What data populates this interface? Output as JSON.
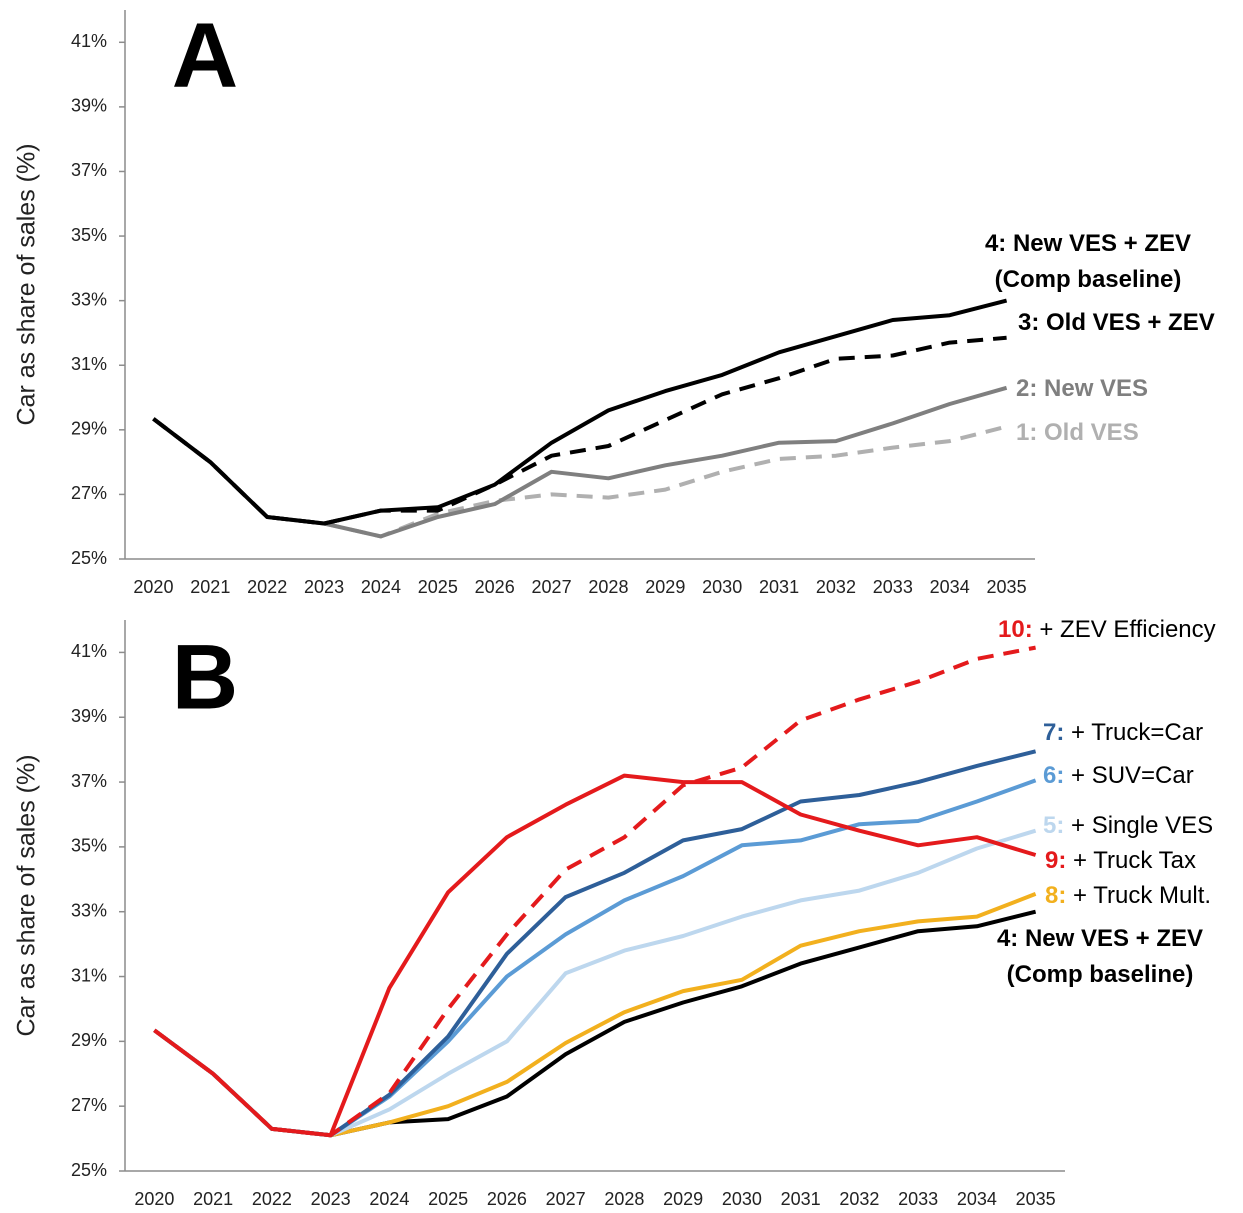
{
  "chart_data": [
    {
      "type": "line",
      "title": "A",
      "y_label": "Car as share of sales (%)",
      "x": [
        2020,
        2021,
        2022,
        2023,
        2024,
        2025,
        2026,
        2027,
        2028,
        2029,
        2030,
        2031,
        2032,
        2033,
        2034,
        2035
      ],
      "xlim": [
        2019.5,
        2035.5
      ],
      "ylim": [
        25,
        42
      ],
      "yticks": [
        {
          "value": 25,
          "label": "25%"
        },
        {
          "value": 27,
          "label": "27%"
        },
        {
          "value": 29,
          "label": "29%"
        },
        {
          "value": 31,
          "label": "31%"
        },
        {
          "value": 33,
          "label": "33%"
        },
        {
          "value": 35,
          "label": "35%"
        },
        {
          "value": 37,
          "label": "37%"
        },
        {
          "value": 39,
          "label": "39%"
        },
        {
          "value": 41,
          "label": "41%"
        }
      ],
      "series": [
        {
          "name": "1: Old VES",
          "color": "#b0b0b0",
          "dashed": true,
          "values": [
            29.34,
            28.0,
            26.3,
            26.1,
            25.7,
            26.4,
            26.8,
            27.0,
            26.9,
            27.15,
            27.7,
            28.1,
            28.2,
            28.45,
            28.65,
            29.1
          ]
        },
        {
          "name": "2: New VES",
          "color": "#7f7f7f",
          "dashed": false,
          "values": [
            29.34,
            28.0,
            26.3,
            26.1,
            25.7,
            26.3,
            26.7,
            27.7,
            27.5,
            27.9,
            28.2,
            28.6,
            28.65,
            29.2,
            29.8,
            30.3
          ]
        },
        {
          "name": "3: Old VES + ZEV",
          "color": "#000000",
          "dashed": true,
          "values": [
            29.34,
            28.0,
            26.3,
            26.1,
            26.5,
            26.5,
            27.3,
            28.2,
            28.5,
            29.3,
            30.1,
            30.6,
            31.2,
            31.3,
            31.7,
            31.85
          ]
        },
        {
          "name": "4: New VES + ZEV (Comp baseline)",
          "color": "#000000",
          "dashed": false,
          "values": [
            29.34,
            28.0,
            26.3,
            26.1,
            26.5,
            26.6,
            27.3,
            28.6,
            29.6,
            30.2,
            30.7,
            31.4,
            31.9,
            32.4,
            32.55,
            33.0
          ]
        }
      ]
    },
    {
      "type": "line",
      "title": "B",
      "y_label": "Car as share of sales (%)",
      "x": [
        2020,
        2021,
        2022,
        2023,
        2024,
        2025,
        2026,
        2027,
        2028,
        2029,
        2030,
        2031,
        2032,
        2033,
        2034,
        2035
      ],
      "xlim": [
        2019.5,
        2035.5
      ],
      "ylim": [
        25,
        42
      ],
      "yticks": [
        {
          "value": 25,
          "label": "25%"
        },
        {
          "value": 27,
          "label": "27%"
        },
        {
          "value": 29,
          "label": "29%"
        },
        {
          "value": 31,
          "label": "31%"
        },
        {
          "value": 33,
          "label": "33%"
        },
        {
          "value": 35,
          "label": "35%"
        },
        {
          "value": 37,
          "label": "37%"
        },
        {
          "value": 39,
          "label": "39%"
        },
        {
          "value": 41,
          "label": "41%"
        }
      ],
      "series": [
        {
          "name": "4: New VES + ZEV (Comp baseline)",
          "color": "#000000",
          "dashed": false,
          "values": [
            29.34,
            28.0,
            26.3,
            26.1,
            26.5,
            26.6,
            27.3,
            28.6,
            29.6,
            30.2,
            30.7,
            31.4,
            31.9,
            32.4,
            32.55,
            33.0
          ]
        },
        {
          "name": "8: + Truck Mult.",
          "color": "#f2b01e",
          "dashed": false,
          "values": [
            29.34,
            28.0,
            26.3,
            26.1,
            26.5,
            27.0,
            27.75,
            28.95,
            29.9,
            30.55,
            30.9,
            31.95,
            32.4,
            32.7,
            32.85,
            33.55
          ]
        },
        {
          "name": "5: + Single VES",
          "color": "#bdd7ee",
          "dashed": false,
          "values": [
            29.34,
            28.0,
            26.3,
            26.1,
            26.9,
            28.0,
            29.0,
            31.1,
            31.8,
            32.25,
            32.85,
            33.35,
            33.65,
            34.2,
            34.95,
            35.5
          ]
        },
        {
          "name": "6: + SUV=Car",
          "color": "#5b9bd5",
          "dashed": false,
          "values": [
            29.34,
            28.0,
            26.3,
            26.1,
            27.3,
            29.0,
            31.0,
            32.3,
            33.35,
            34.1,
            35.05,
            35.2,
            35.7,
            35.8,
            36.4,
            37.05
          ]
        },
        {
          "name": "7: + Truck=Car",
          "color": "#2e5f99",
          "dashed": false,
          "values": [
            29.34,
            28.0,
            26.3,
            26.1,
            27.35,
            29.15,
            31.7,
            33.45,
            34.2,
            35.2,
            35.55,
            36.4,
            36.6,
            37.0,
            37.5,
            37.95
          ]
        },
        {
          "name": "9: + Truck Tax",
          "color": "#e41a1c",
          "dashed": false,
          "values": [
            29.34,
            28.0,
            26.3,
            26.1,
            30.65,
            33.6,
            35.3,
            36.3,
            37.2,
            37.0,
            37.0,
            36.0,
            35.5,
            35.05,
            35.3,
            34.75
          ]
        },
        {
          "name": "10: + ZEV Efficiency",
          "color": "#e41a1c",
          "dashed": true,
          "values": [
            29.34,
            28.0,
            26.3,
            26.1,
            27.4,
            30.0,
            32.3,
            34.3,
            35.3,
            36.9,
            37.45,
            38.9,
            39.55,
            40.1,
            40.8,
            41.15
          ]
        }
      ]
    }
  ]
}
